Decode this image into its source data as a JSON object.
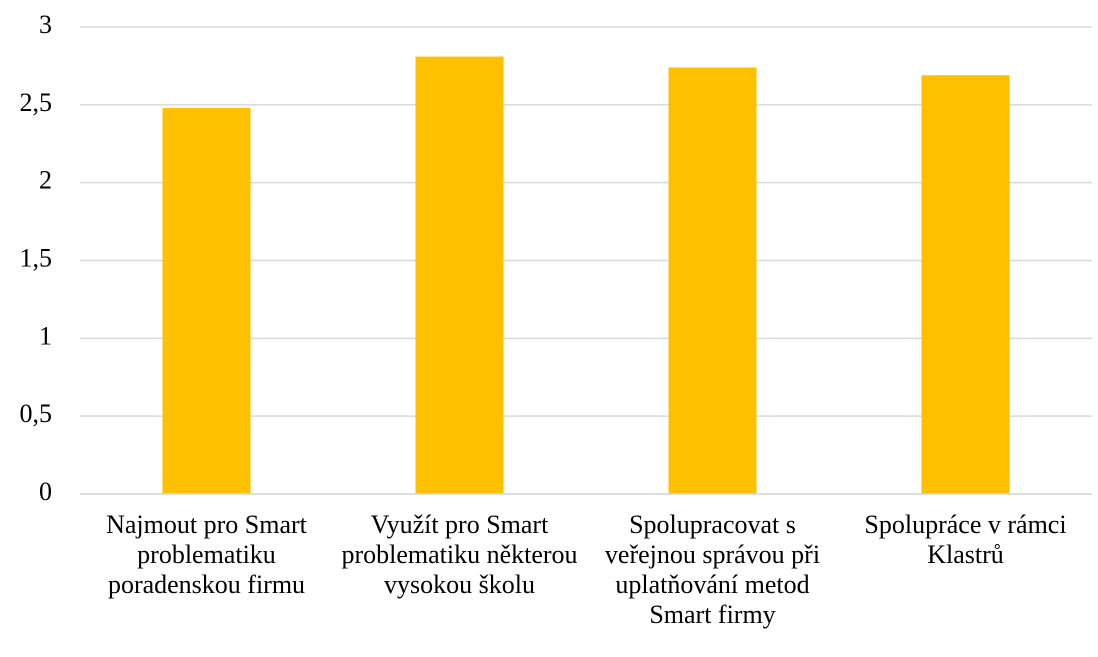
{
  "chart_data": {
    "type": "bar",
    "categories": [
      "Najmout pro Smart problematiku poradenskou firmu",
      "Využít pro Smart problematiku některou vysokou školu",
      "Spolupracovat s veřejnou správou při uplatňování metod Smart firmy",
      "Spolupráce v rámci Klastrů"
    ],
    "values": [
      2.48,
      2.81,
      2.74,
      2.69
    ],
    "color": "#ffc000",
    "ylim": [
      0,
      3
    ],
    "yticks": [
      0,
      {
        "value": 0.5,
        "label": "0,5"
      },
      1,
      {
        "value": 1.5,
        "label": "1,5"
      },
      2,
      {
        "value": 2.5,
        "label": "2,5"
      },
      3
    ],
    "grid": true
  }
}
